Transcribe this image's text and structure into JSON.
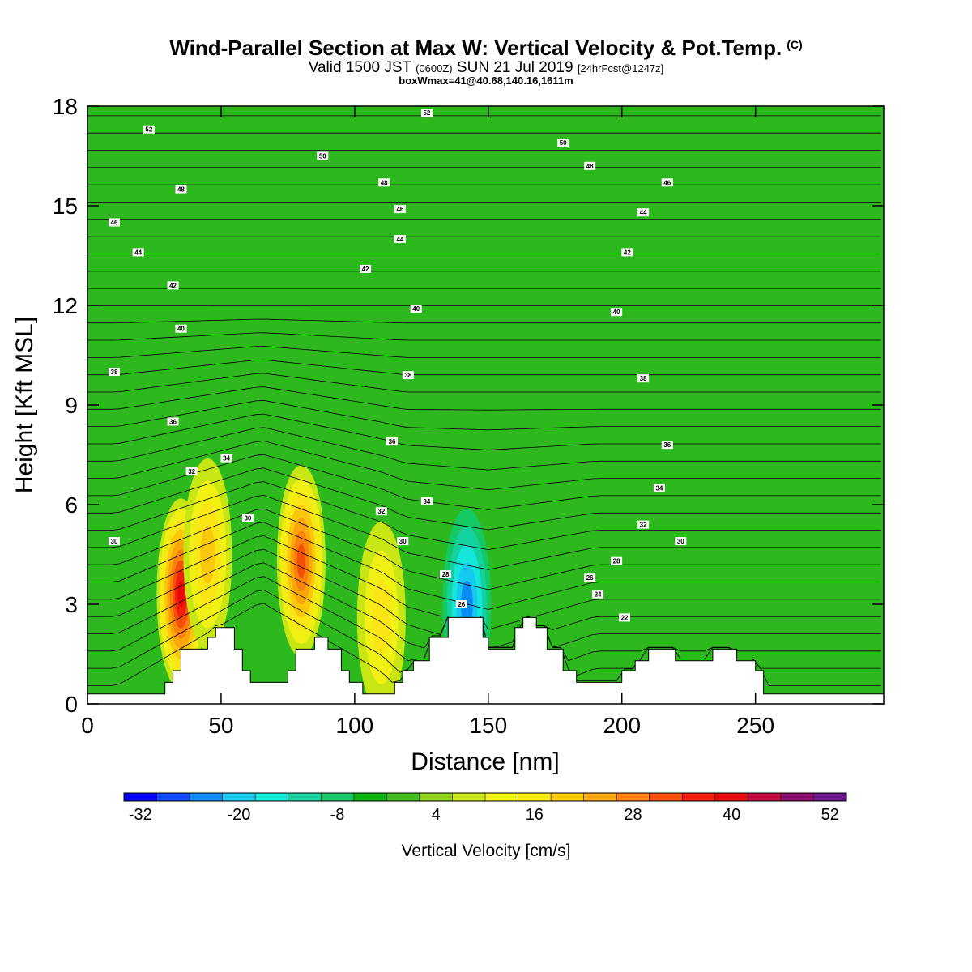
{
  "title": {
    "main": "Wind-Parallel Section at Max W: Vertical Velocity & Pot.Temp.",
    "copyright_mark": "(C)",
    "valid_prefix": "Valid 1500 JST",
    "valid_utc": "(0600Z)",
    "valid_date": "SUN 21 Jul 2019",
    "forecast": "[24hrFcst@1247z]",
    "boxwmax": "boxWmax=41@40.68,140.16,1611m"
  },
  "colors": {
    "background_field": "#2db81e",
    "terrain": "#ffffff",
    "contour": "#000000",
    "colorbar": [
      "#0000f0",
      "#0a4af8",
      "#0a8cf0",
      "#14c8f0",
      "#14e6dc",
      "#14d2a0",
      "#14c864",
      "#0ab40a",
      "#3cbe1e",
      "#8cd214",
      "#c8e614",
      "#f0f014",
      "#fae614",
      "#fac80a",
      "#faa50a",
      "#fa820a",
      "#f5500a",
      "#f01e0a",
      "#e60a0a",
      "#be0a3c",
      "#8c0a6e",
      "#6e148c"
    ]
  },
  "chart_data": {
    "type": "heatmap",
    "xlabel": "Distance [nm]",
    "ylabel": "Height [Kft MSL]",
    "xlim": [
      0,
      298
    ],
    "ylim": [
      0,
      18
    ],
    "x_ticks": [
      "0",
      "50",
      "100",
      "150",
      "200",
      "250"
    ],
    "y_ticks": [
      "0",
      "3",
      "6",
      "9",
      "12",
      "15",
      "18"
    ],
    "colorbar": {
      "label": "Vertical Velocity [cm/s]",
      "ticks": [
        "-32",
        "-20",
        "-8",
        "4",
        "16",
        "28",
        "40",
        "52"
      ],
      "range": [
        -34,
        54
      ],
      "step": 4
    },
    "updraft_cores": [
      {
        "x": 35,
        "y": 3.3,
        "peak": 41
      },
      {
        "x": 45,
        "y": 4.5,
        "peak": 20
      },
      {
        "x": 80,
        "y": 4.3,
        "peak": 33
      },
      {
        "x": 110,
        "y": 2.6,
        "peak": 16
      }
    ],
    "downdraft_cores": [
      {
        "x": 142,
        "y": 3.0,
        "peak": -26
      }
    ],
    "terrain_profile": [
      [
        0,
        0.3
      ],
      [
        29,
        0.3
      ],
      [
        29,
        0.65
      ],
      [
        32,
        0.65
      ],
      [
        32,
        1.0
      ],
      [
        35,
        1.0
      ],
      [
        35,
        1.65
      ],
      [
        45,
        1.65
      ],
      [
        45,
        2.0
      ],
      [
        48,
        2.0
      ],
      [
        48,
        2.3
      ],
      [
        55,
        2.3
      ],
      [
        55,
        1.65
      ],
      [
        58,
        1.65
      ],
      [
        58,
        1.0
      ],
      [
        61,
        1.0
      ],
      [
        61,
        0.65
      ],
      [
        75,
        0.65
      ],
      [
        75,
        1.0
      ],
      [
        78,
        1.0
      ],
      [
        78,
        1.65
      ],
      [
        85,
        1.65
      ],
      [
        85,
        2.0
      ],
      [
        90,
        2.0
      ],
      [
        90,
        1.65
      ],
      [
        95,
        1.65
      ],
      [
        95,
        1.0
      ],
      [
        98,
        1.0
      ],
      [
        98,
        0.65
      ],
      [
        103,
        0.65
      ],
      [
        103,
        0.3
      ],
      [
        115,
        0.3
      ],
      [
        115,
        0.65
      ],
      [
        118,
        0.65
      ],
      [
        118,
        1.0
      ],
      [
        122,
        1.0
      ],
      [
        122,
        1.3
      ],
      [
        128,
        1.3
      ],
      [
        128,
        2.0
      ],
      [
        135,
        2.0
      ],
      [
        135,
        2.6
      ],
      [
        148,
        2.6
      ],
      [
        148,
        2.0
      ],
      [
        150,
        2.0
      ],
      [
        150,
        1.65
      ],
      [
        160,
        1.65
      ],
      [
        160,
        2.3
      ],
      [
        163,
        2.3
      ],
      [
        163,
        2.6
      ],
      [
        168,
        2.6
      ],
      [
        168,
        2.3
      ],
      [
        172,
        2.3
      ],
      [
        172,
        1.65
      ],
      [
        178,
        1.65
      ],
      [
        178,
        1.0
      ],
      [
        183,
        1.0
      ],
      [
        183,
        0.65
      ],
      [
        200,
        0.65
      ],
      [
        200,
        1.0
      ],
      [
        205,
        1.0
      ],
      [
        205,
        1.3
      ],
      [
        210,
        1.3
      ],
      [
        210,
        1.65
      ],
      [
        220,
        1.65
      ],
      [
        220,
        1.3
      ],
      [
        234,
        1.3
      ],
      [
        234,
        1.65
      ],
      [
        243,
        1.65
      ],
      [
        243,
        1.3
      ],
      [
        250,
        1.3
      ],
      [
        250,
        1.0
      ],
      [
        253,
        1.0
      ],
      [
        253,
        0.3
      ],
      [
        298,
        0.3
      ]
    ],
    "theta_contour_labels": [
      {
        "text": "52",
        "x": 23,
        "y": 17.3
      },
      {
        "text": "52",
        "x": 127,
        "y": 17.8
      },
      {
        "text": "50",
        "x": 88,
        "y": 16.5
      },
      {
        "text": "50",
        "x": 178,
        "y": 16.9
      },
      {
        "text": "48",
        "x": 35,
        "y": 15.5
      },
      {
        "text": "48",
        "x": 111,
        "y": 15.7
      },
      {
        "text": "48",
        "x": 188,
        "y": 16.2
      },
      {
        "text": "46",
        "x": 10,
        "y": 14.5
      },
      {
        "text": "46",
        "x": 117,
        "y": 14.9
      },
      {
        "text": "46",
        "x": 217,
        "y": 15.7
      },
      {
        "text": "44",
        "x": 19,
        "y": 13.6
      },
      {
        "text": "44",
        "x": 117,
        "y": 14.0
      },
      {
        "text": "44",
        "x": 208,
        "y": 14.8
      },
      {
        "text": "42",
        "x": 32,
        "y": 12.6
      },
      {
        "text": "42",
        "x": 104,
        "y": 13.1
      },
      {
        "text": "42",
        "x": 202,
        "y": 13.6
      },
      {
        "text": "40",
        "x": 35,
        "y": 11.3
      },
      {
        "text": "40",
        "x": 123,
        "y": 11.9
      },
      {
        "text": "40",
        "x": 198,
        "y": 11.8
      },
      {
        "text": "38",
        "x": 10,
        "y": 10.0
      },
      {
        "text": "38",
        "x": 120,
        "y": 9.9
      },
      {
        "text": "38",
        "x": 208,
        "y": 9.8
      },
      {
        "text": "36",
        "x": 32,
        "y": 8.5
      },
      {
        "text": "36",
        "x": 114,
        "y": 7.9
      },
      {
        "text": "36",
        "x": 217,
        "y": 7.8
      },
      {
        "text": "34",
        "x": 52,
        "y": 7.4
      },
      {
        "text": "34",
        "x": 127,
        "y": 6.1
      },
      {
        "text": "34",
        "x": 214,
        "y": 6.5
      },
      {
        "text": "32",
        "x": 39,
        "y": 7.0
      },
      {
        "text": "32",
        "x": 110,
        "y": 5.8
      },
      {
        "text": "32",
        "x": 208,
        "y": 5.4
      },
      {
        "text": "30",
        "x": 10,
        "y": 4.9
      },
      {
        "text": "30",
        "x": 60,
        "y": 5.6
      },
      {
        "text": "30",
        "x": 118,
        "y": 4.9
      },
      {
        "text": "30",
        "x": 222,
        "y": 4.9
      },
      {
        "text": "28",
        "x": 134,
        "y": 3.9
      },
      {
        "text": "28",
        "x": 198,
        "y": 4.3
      },
      {
        "text": "26",
        "x": 140,
        "y": 3.0
      },
      {
        "text": "26",
        "x": 188,
        "y": 3.8
      },
      {
        "text": "24",
        "x": 191,
        "y": 3.3
      },
      {
        "text": "22",
        "x": 201,
        "y": 2.6
      }
    ]
  }
}
